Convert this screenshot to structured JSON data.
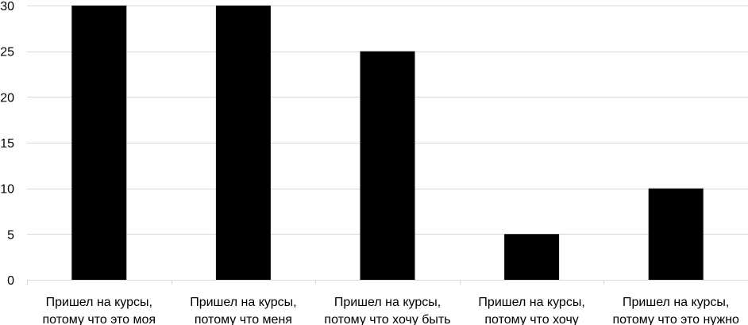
{
  "chart_data": {
    "type": "bar",
    "categories": [
      [
        "Пришел на курсы,",
        "потому что это моя"
      ],
      [
        "Пришел на курсы,",
        "потому что меня"
      ],
      [
        "Пришел на курсы,",
        "потому что хочу быть"
      ],
      [
        "Пришел на курсы,",
        "потому что хочу"
      ],
      [
        "Пришел на курсы,",
        "потому что это нужно"
      ]
    ],
    "values": [
      30,
      30,
      25,
      5,
      10
    ],
    "ylim": [
      0,
      30
    ],
    "yticks": [
      0,
      5,
      10,
      15,
      20,
      25,
      30
    ],
    "grid": true,
    "legend": "none",
    "title": "",
    "xlabel": "",
    "ylabel": "",
    "colors": {
      "bar": "#000000",
      "grid": "#d9d9d9",
      "axis": "#d9d9d9",
      "text": "#000000"
    }
  }
}
